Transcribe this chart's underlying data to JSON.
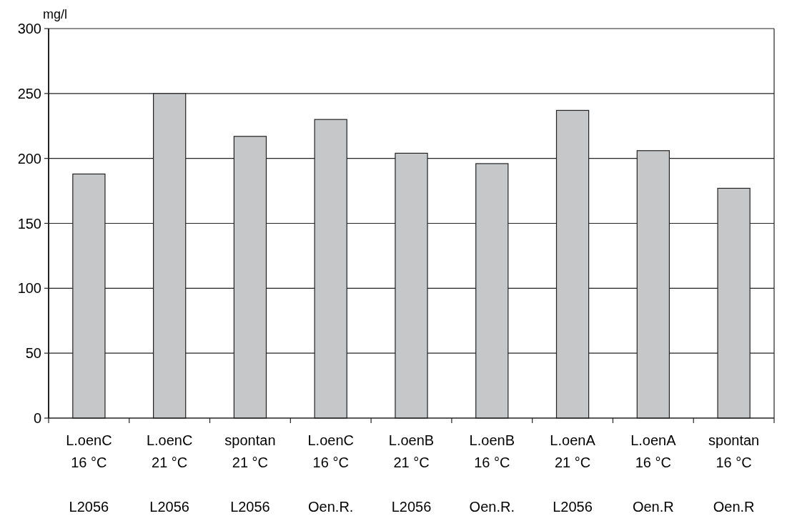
{
  "chart_data": {
    "type": "bar",
    "ylabel": "mg/l",
    "categories": [
      "L.oenC\n16 °C\n\nL2056",
      "L.oenC\n21 °C\n\nL2056",
      "spontan\n21 °C\n\nL2056",
      "L.oenC\n16 °C\n\nOen.R.",
      "L.oenB\n21 °C\n\nL2056",
      "L.oenB\n16 °C\n\nOen.R.",
      "L.oenA\n21 °C\n\nL2056",
      "L.oenA\n16 °C\n\nOen.R",
      "spontan\n16 °C\n\nOen.R"
    ],
    "values": [
      188,
      250,
      217,
      230,
      204,
      196,
      237,
      206,
      177
    ],
    "color": "#c6c7c9",
    "ylim": [
      0,
      300
    ],
    "yticks": [
      0,
      50,
      100,
      150,
      200,
      250,
      300
    ],
    "grid": "y"
  }
}
